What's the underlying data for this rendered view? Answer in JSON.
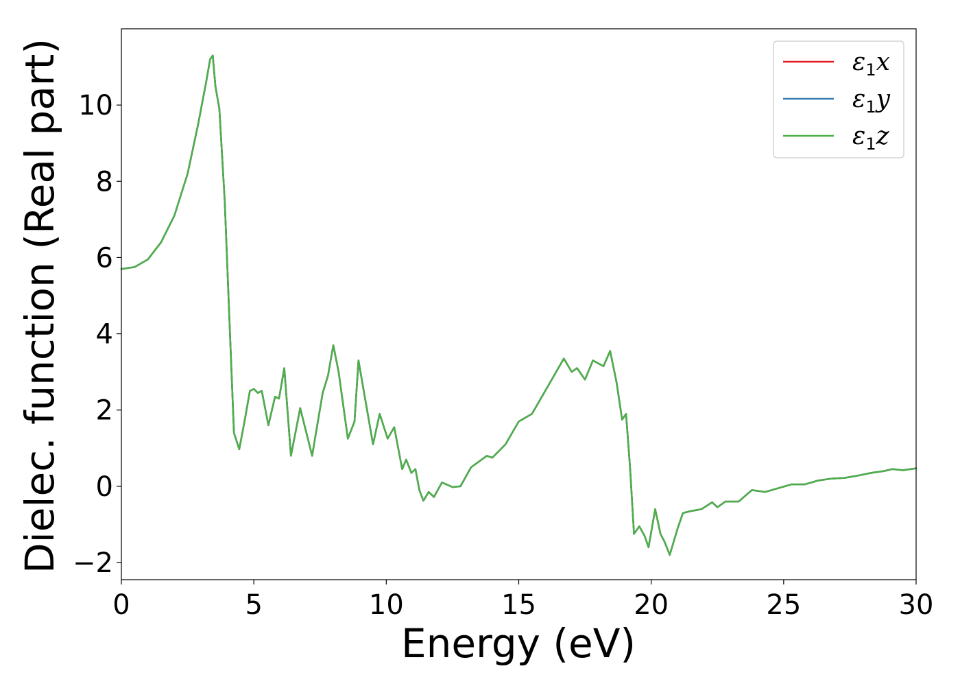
{
  "chart_data": {
    "type": "line",
    "xlabel": "Energy (eV)",
    "ylabel": "Dielec. function (Real part)",
    "xlim": [
      0,
      30
    ],
    "ylim": [
      -2.45,
      12
    ],
    "xticks": [
      0,
      5,
      10,
      15,
      20,
      25,
      30
    ],
    "yticks": [
      -2,
      0,
      2,
      4,
      6,
      8,
      10
    ],
    "ytick_labels": [
      "−2",
      "0",
      "2",
      "4",
      "6",
      "8",
      "10"
    ],
    "grid": false,
    "legend_position": "top-right",
    "series": [
      {
        "name": "ε₁x",
        "symbol": "ε",
        "subscript": "1",
        "axis": "x",
        "color": "#e41a1c",
        "x": [
          0,
          0.5,
          1.0,
          1.5,
          2.0,
          2.5,
          2.9,
          3.2,
          3.35,
          3.45,
          3.55,
          3.7,
          3.9,
          4.1,
          4.25,
          4.45,
          4.65,
          4.85,
          5.0,
          5.15,
          5.3,
          5.55,
          5.8,
          5.95,
          6.15,
          6.4,
          6.75,
          7.2,
          7.6,
          7.8,
          8.0,
          8.2,
          8.55,
          8.8,
          8.95,
          9.15,
          9.5,
          9.75,
          10.05,
          10.3,
          10.6,
          10.75,
          10.95,
          11.1,
          11.25,
          11.4,
          11.6,
          11.8,
          12.1,
          12.5,
          12.8,
          13.2,
          13.5,
          13.8,
          14.0,
          14.5,
          15.0,
          15.5,
          16.0,
          16.7,
          17.0,
          17.2,
          17.5,
          17.8,
          18.2,
          18.45,
          18.7,
          18.9,
          19.05,
          19.2,
          19.35,
          19.55,
          19.75,
          19.9,
          20.15,
          20.35,
          20.5,
          20.7,
          21.0,
          21.2,
          21.5,
          21.9,
          22.3,
          22.5,
          22.8,
          23.3,
          23.8,
          24.3,
          24.8,
          25.3,
          25.8,
          26.3,
          26.8,
          27.3,
          27.8,
          28.3,
          28.8,
          29.1,
          29.5,
          30.0
        ],
        "y": [
          5.7,
          5.75,
          5.95,
          6.4,
          7.1,
          8.2,
          9.5,
          10.6,
          11.2,
          11.3,
          10.5,
          9.9,
          7.5,
          4.0,
          1.4,
          0.97,
          1.7,
          2.5,
          2.55,
          2.45,
          2.5,
          1.6,
          2.35,
          2.3,
          3.1,
          0.8,
          2.05,
          0.8,
          2.45,
          2.9,
          3.7,
          3.0,
          1.25,
          1.7,
          3.3,
          2.5,
          1.1,
          1.9,
          1.25,
          1.55,
          0.45,
          0.7,
          0.35,
          0.45,
          -0.1,
          -0.38,
          -0.15,
          -0.28,
          0.1,
          -0.02,
          0.0,
          0.5,
          0.65,
          0.8,
          0.75,
          1.1,
          1.7,
          1.9,
          2.5,
          3.35,
          3.0,
          3.1,
          2.8,
          3.3,
          3.15,
          3.55,
          2.7,
          1.75,
          1.9,
          0.5,
          -1.25,
          -1.05,
          -1.3,
          -1.6,
          -0.6,
          -1.25,
          -1.45,
          -1.8,
          -1.1,
          -0.7,
          -0.65,
          -0.6,
          -0.42,
          -0.55,
          -0.4,
          -0.4,
          -0.1,
          -0.15,
          -0.05,
          0.05,
          0.05,
          0.15,
          0.2,
          0.22,
          0.28,
          0.35,
          0.4,
          0.45,
          0.42,
          0.47
        ]
      },
      {
        "name": "ε₁y",
        "symbol": "ε",
        "subscript": "1",
        "axis": "y",
        "color": "#377eb8",
        "x": [
          0,
          0.5,
          1.0,
          1.5,
          2.0,
          2.5,
          2.9,
          3.2,
          3.35,
          3.45,
          3.55,
          3.7,
          3.9,
          4.1,
          4.25,
          4.45,
          4.65,
          4.85,
          5.0,
          5.15,
          5.3,
          5.55,
          5.8,
          5.95,
          6.15,
          6.4,
          6.75,
          7.2,
          7.6,
          7.8,
          8.0,
          8.2,
          8.55,
          8.8,
          8.95,
          9.15,
          9.5,
          9.75,
          10.05,
          10.3,
          10.6,
          10.75,
          10.95,
          11.1,
          11.25,
          11.4,
          11.6,
          11.8,
          12.1,
          12.5,
          12.8,
          13.2,
          13.5,
          13.8,
          14.0,
          14.5,
          15.0,
          15.5,
          16.0,
          16.7,
          17.0,
          17.2,
          17.5,
          17.8,
          18.2,
          18.45,
          18.7,
          18.9,
          19.05,
          19.2,
          19.35,
          19.55,
          19.75,
          19.9,
          20.15,
          20.35,
          20.5,
          20.7,
          21.0,
          21.2,
          21.5,
          21.9,
          22.3,
          22.5,
          22.8,
          23.3,
          23.8,
          24.3,
          24.8,
          25.3,
          25.8,
          26.3,
          26.8,
          27.3,
          27.8,
          28.3,
          28.8,
          29.1,
          29.5,
          30.0
        ],
        "y": [
          5.7,
          5.75,
          5.95,
          6.4,
          7.1,
          8.2,
          9.5,
          10.6,
          11.2,
          11.3,
          10.5,
          9.9,
          7.5,
          4.0,
          1.4,
          0.97,
          1.7,
          2.5,
          2.55,
          2.45,
          2.5,
          1.6,
          2.35,
          2.3,
          3.1,
          0.8,
          2.05,
          0.8,
          2.45,
          2.9,
          3.7,
          3.0,
          1.25,
          1.7,
          3.3,
          2.5,
          1.1,
          1.9,
          1.25,
          1.55,
          0.45,
          0.7,
          0.35,
          0.45,
          -0.1,
          -0.38,
          -0.15,
          -0.28,
          0.1,
          -0.02,
          0.0,
          0.5,
          0.65,
          0.8,
          0.75,
          1.1,
          1.7,
          1.9,
          2.5,
          3.35,
          3.0,
          3.1,
          2.8,
          3.3,
          3.15,
          3.55,
          2.7,
          1.75,
          1.9,
          0.5,
          -1.25,
          -1.05,
          -1.3,
          -1.6,
          -0.6,
          -1.25,
          -1.45,
          -1.8,
          -1.1,
          -0.7,
          -0.65,
          -0.6,
          -0.42,
          -0.55,
          -0.4,
          -0.4,
          -0.1,
          -0.15,
          -0.05,
          0.05,
          0.05,
          0.15,
          0.2,
          0.22,
          0.28,
          0.35,
          0.4,
          0.45,
          0.42,
          0.47
        ]
      },
      {
        "name": "ε₁z",
        "symbol": "ε",
        "subscript": "1",
        "axis": "z",
        "color": "#4daf4a",
        "x": [
          0,
          0.5,
          1.0,
          1.5,
          2.0,
          2.5,
          2.9,
          3.2,
          3.35,
          3.45,
          3.55,
          3.7,
          3.9,
          4.1,
          4.25,
          4.45,
          4.65,
          4.85,
          5.0,
          5.15,
          5.3,
          5.55,
          5.8,
          5.95,
          6.15,
          6.4,
          6.75,
          7.2,
          7.6,
          7.8,
          8.0,
          8.2,
          8.55,
          8.8,
          8.95,
          9.15,
          9.5,
          9.75,
          10.05,
          10.3,
          10.6,
          10.75,
          10.95,
          11.1,
          11.25,
          11.4,
          11.6,
          11.8,
          12.1,
          12.5,
          12.8,
          13.2,
          13.5,
          13.8,
          14.0,
          14.5,
          15.0,
          15.5,
          16.0,
          16.7,
          17.0,
          17.2,
          17.5,
          17.8,
          18.2,
          18.45,
          18.7,
          18.9,
          19.05,
          19.2,
          19.35,
          19.55,
          19.75,
          19.9,
          20.15,
          20.35,
          20.5,
          20.7,
          21.0,
          21.2,
          21.5,
          21.9,
          22.3,
          22.5,
          22.8,
          23.3,
          23.8,
          24.3,
          24.8,
          25.3,
          25.8,
          26.3,
          26.8,
          27.3,
          27.8,
          28.3,
          28.8,
          29.1,
          29.5,
          30.0
        ],
        "y": [
          5.7,
          5.75,
          5.95,
          6.4,
          7.1,
          8.2,
          9.5,
          10.6,
          11.2,
          11.3,
          10.5,
          9.9,
          7.5,
          4.0,
          1.4,
          0.97,
          1.7,
          2.5,
          2.55,
          2.45,
          2.5,
          1.6,
          2.35,
          2.3,
          3.1,
          0.8,
          2.05,
          0.8,
          2.45,
          2.9,
          3.7,
          3.0,
          1.25,
          1.7,
          3.3,
          2.5,
          1.1,
          1.9,
          1.25,
          1.55,
          0.45,
          0.7,
          0.35,
          0.45,
          -0.1,
          -0.38,
          -0.15,
          -0.28,
          0.1,
          -0.02,
          0.0,
          0.5,
          0.65,
          0.8,
          0.75,
          1.1,
          1.7,
          1.9,
          2.5,
          3.35,
          3.0,
          3.1,
          2.8,
          3.3,
          3.15,
          3.55,
          2.7,
          1.75,
          1.9,
          0.5,
          -1.25,
          -1.05,
          -1.3,
          -1.6,
          -0.6,
          -1.25,
          -1.45,
          -1.8,
          -1.1,
          -0.7,
          -0.65,
          -0.6,
          -0.42,
          -0.55,
          -0.4,
          -0.4,
          -0.1,
          -0.15,
          -0.05,
          0.05,
          0.05,
          0.15,
          0.2,
          0.22,
          0.28,
          0.35,
          0.4,
          0.45,
          0.42,
          0.47
        ]
      }
    ]
  }
}
